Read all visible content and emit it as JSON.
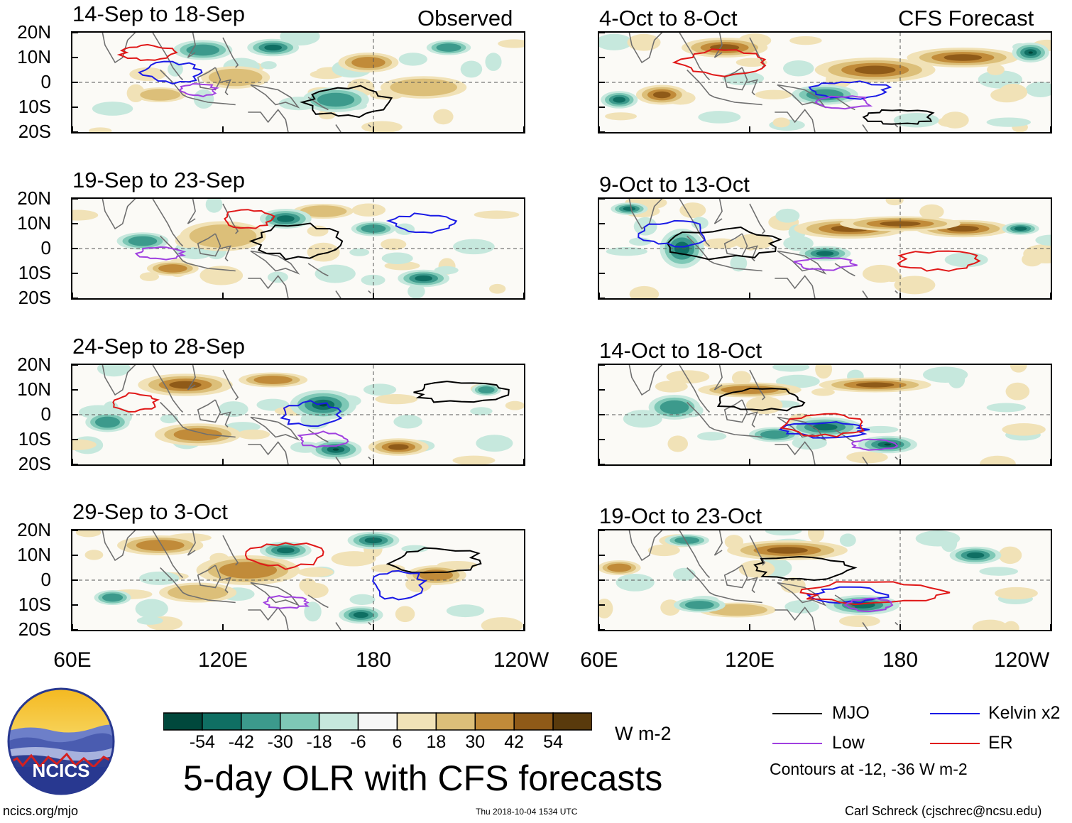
{
  "chart_data": {
    "type": "heatmap",
    "title": "5-day OLR with CFS forecasts",
    "units": "W m-2",
    "left_column_label": "Observed",
    "right_column_label": "CFS Forecast",
    "lat_ticks": [
      "20N",
      "10N",
      "0",
      "10S",
      "20S"
    ],
    "lon_ticks": [
      "60E",
      "120E",
      "180",
      "120W"
    ],
    "lat_range": [
      -20,
      20
    ],
    "lon_range": [
      60,
      240
    ],
    "colorbar_ticks": [
      "-54",
      "-42",
      "-30",
      "-18",
      "-6",
      "6",
      "18",
      "30",
      "42",
      "54"
    ],
    "colorbar_colors": [
      "#00483c",
      "#0f6f63",
      "#3c9a8c",
      "#7ec8b6",
      "#c6e8dd",
      "#f7f7f7",
      "#f1e2b7",
      "#dcbf79",
      "#c18b39",
      "#8f5a18",
      "#593a0c"
    ],
    "panels_left": [
      {
        "title": "14-Sep to 18-Sep"
      },
      {
        "title": "19-Sep to 23-Sep"
      },
      {
        "title": "24-Sep to 28-Sep"
      },
      {
        "title": "29-Sep to 3-Oct"
      }
    ],
    "panels_right": [
      {
        "title": "4-Oct to 8-Oct"
      },
      {
        "title": "9-Oct to 13-Oct"
      },
      {
        "title": "14-Oct to 18-Oct"
      },
      {
        "title": "19-Oct to 23-Oct"
      }
    ],
    "legend": {
      "items": [
        {
          "label": "MJO",
          "color": "#000000"
        },
        {
          "label": "Kelvin x2",
          "color": "#1a1ae6"
        },
        {
          "label": "Low",
          "color": "#a040e0"
        },
        {
          "label": "ER",
          "color": "#e01818"
        }
      ],
      "note": "Contours at -12, -36 W m-2"
    }
  },
  "logo": {
    "text": "NCICS"
  },
  "footer": {
    "left": "ncics.org/mjo",
    "center": "Thu 2018-10-04 1534 UTC",
    "right": "Carl Schreck (cjschrec@ncsu.edu)"
  },
  "colors": {
    "mjo": "#000000",
    "kelvin": "#1a1ae6",
    "low": "#a040e0",
    "er": "#e01818"
  }
}
